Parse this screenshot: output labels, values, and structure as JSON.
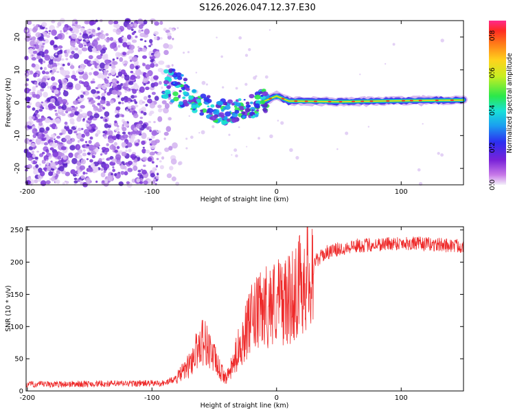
{
  "title": "S126.2026.047.12.37.E30",
  "chart_data": [
    {
      "type": "heatmap",
      "name": "spectrogram",
      "xlabel": "Height of straight line (km)",
      "ylabel": "Frequency (Hz)",
      "xlim": [
        -201,
        150
      ],
      "ylim": [
        -25,
        25
      ],
      "xticks": [
        -200,
        -100,
        0,
        100
      ],
      "yticks": [
        -20,
        -10,
        0,
        10,
        20
      ],
      "colorbar": {
        "label": "Normalized spectral amplitude",
        "range": [
          0,
          0.88
        ],
        "ticks": [
          0.0,
          0.2,
          0.4,
          0.6,
          0.8
        ]
      },
      "ridge": [
        {
          "x": -90,
          "y": 6
        },
        {
          "x": -80,
          "y": 5
        },
        {
          "x": -70,
          "y": 2
        },
        {
          "x": -60,
          "y": -1
        },
        {
          "x": -50,
          "y": -2
        },
        {
          "x": -40,
          "y": -3
        },
        {
          "x": -30,
          "y": -2
        },
        {
          "x": -20,
          "y": -1
        },
        {
          "x": -10,
          "y": 0.5
        },
        {
          "x": 0,
          "y": 2
        },
        {
          "x": 10,
          "y": 0.5
        },
        {
          "x": 50,
          "y": 0.3
        },
        {
          "x": 100,
          "y": 0.6
        },
        {
          "x": 150,
          "y": 0.8
        }
      ]
    },
    {
      "type": "line",
      "name": "snr",
      "xlabel": "Height of straight line (km)",
      "ylabel": "SNR (10 * v/v)",
      "xlim": [
        -201,
        150
      ],
      "ylim": [
        0,
        255
      ],
      "xticks": [
        -200,
        -100,
        0,
        100
      ],
      "yticks": [
        0,
        50,
        100,
        150,
        200,
        250
      ],
      "color": "#ee2a2a",
      "envelope": [
        {
          "x": -201,
          "y": 10
        },
        {
          "x": -90,
          "y": 12
        },
        {
          "x": -80,
          "y": 20
        },
        {
          "x": -70,
          "y": 40
        },
        {
          "x": -60,
          "y": 80
        },
        {
          "x": -55,
          "y": 70
        },
        {
          "x": -50,
          "y": 50
        },
        {
          "x": -45,
          "y": 30
        },
        {
          "x": -40,
          "y": 20
        },
        {
          "x": -35,
          "y": 40
        },
        {
          "x": -30,
          "y": 70
        },
        {
          "x": -20,
          "y": 110
        },
        {
          "x": -10,
          "y": 130
        },
        {
          "x": 0,
          "y": 140
        },
        {
          "x": 10,
          "y": 140
        },
        {
          "x": 20,
          "y": 170
        },
        {
          "x": 30,
          "y": 200
        },
        {
          "x": 40,
          "y": 215
        },
        {
          "x": 60,
          "y": 225
        },
        {
          "x": 100,
          "y": 230
        },
        {
          "x": 150,
          "y": 225
        }
      ]
    }
  ]
}
